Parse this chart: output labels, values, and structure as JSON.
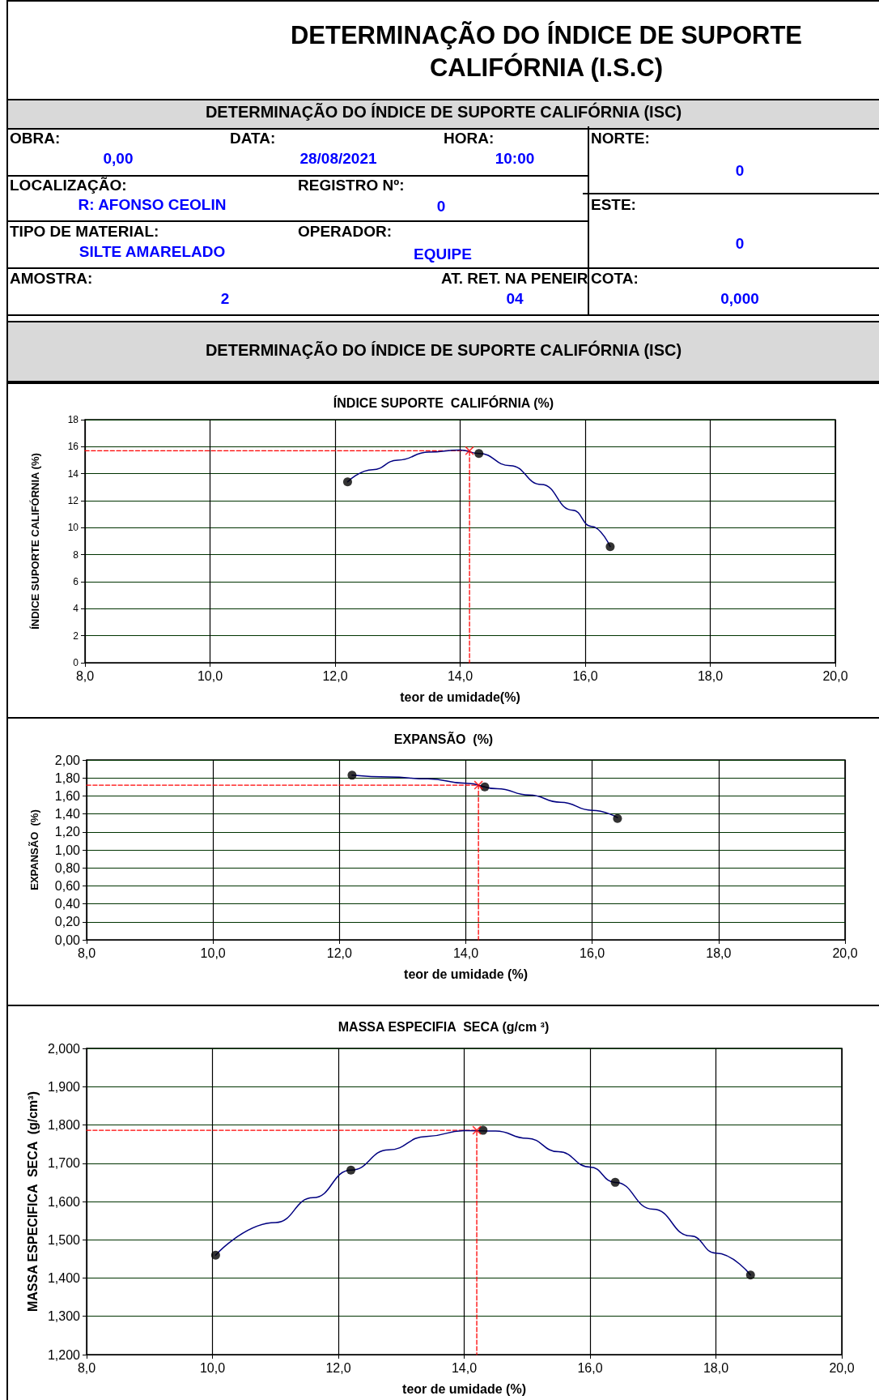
{
  "chart_data": [
    {
      "type": "other",
      "title": "DETERMINAÇÃO DO ÍNDICE DE SUPORTE CALIFÓRNIA (I.S.C)",
      "subtitle": "DETERMINAÇÃO DO ÍNDICE DE SUPORTE CALIFÓRNIA (ISC)",
      "annotations": [
        "OBRA:",
        "0,00",
        "DATA:",
        "28/08/2021",
        "HORA:",
        "10:00",
        "NORTE:",
        "0",
        "LOCALIZAÇÃO:",
        "R: AFONSO CEOLIN",
        "REGISTRO Nº:",
        "0",
        "ESTE:",
        "0",
        "TIPO DE MATERIAL:",
        "SILTE  AMARELADO",
        "OPERADOR:",
        "EQUIPE",
        "AMOSTRA:",
        "2",
        "AT. RET. NA PENEIR",
        "04",
        "COTA:",
        "0,000",
        "DETERMINAÇÃO DO ÍNDICE DE SUPORTE CALIFÓRNIA (ISC)"
      ]
    },
    {
      "type": "scatter",
      "title": "ÍNDICE SUPORTE  CALIFÓRNIA (%)",
      "xlabel": "teor de umidade(%)",
      "ylabel": "ÍNDICE SUPORTE CALIFÓRNIA (%)",
      "xlim": [
        8,
        20
      ],
      "xticks": [
        {
          "value": 8,
          "label": "8,0"
        },
        {
          "value": 10,
          "label": "10,0"
        },
        {
          "value": 12,
          "label": "12,0"
        },
        {
          "value": 14,
          "label": "14,0"
        },
        {
          "value": 16,
          "label": "16,0"
        },
        {
          "value": 18,
          "label": "18,0"
        },
        {
          "value": 20,
          "label": "20,0"
        }
      ],
      "ylim": [
        0,
        18
      ],
      "yticks": [
        0,
        2,
        4,
        6,
        8,
        10,
        12,
        14,
        16,
        18
      ],
      "grid": true,
      "series": [
        {
          "type": "line",
          "color": "#ff0000",
          "line_style": "dashed",
          "marker": "none",
          "x": [
            8,
            14.15,
            14.15
          ],
          "values": [
            15.7,
            15.7,
            0
          ]
        },
        {
          "type": "line",
          "color": "#000080",
          "marker": "none",
          "x": [
            12.2,
            12.6,
            13.0,
            13.5,
            14.0,
            14.3,
            14.8,
            15.3,
            15.8,
            16.1,
            16.4
          ],
          "values": [
            13.4,
            14.3,
            15.0,
            15.6,
            15.75,
            15.5,
            14.6,
            13.2,
            11.3,
            10.1,
            8.6
          ]
        },
        {
          "type": "scatter",
          "color": "#000000",
          "marker": "circle",
          "x": [
            12.2,
            14.3,
            16.4
          ],
          "values": [
            13.4,
            15.5,
            8.6
          ]
        },
        {
          "type": "scatter",
          "color": "#ff0000",
          "marker": "cross",
          "x": [
            14.15
          ],
          "values": [
            15.7
          ]
        }
      ]
    },
    {
      "type": "scatter",
      "title": "EXPANSÃO  (%)",
      "xlabel": "teor de umidade (%)",
      "ylabel": "EXPANSÃO  (%)",
      "xlim": [
        8,
        20
      ],
      "xticks": [
        {
          "value": 8,
          "label": "8,0"
        },
        {
          "value": 10,
          "label": "10,0"
        },
        {
          "value": 12,
          "label": "12,0"
        },
        {
          "value": 14,
          "label": "14,0"
        },
        {
          "value": 16,
          "label": "16,0"
        },
        {
          "value": 18,
          "label": "18,0"
        },
        {
          "value": 20,
          "label": "20,0"
        }
      ],
      "ylim": [
        0,
        2
      ],
      "yticks": [
        {
          "value": 0,
          "label": "0,00"
        },
        {
          "value": 0.2,
          "label": "0,20"
        },
        {
          "value": 0.4,
          "label": "0,40"
        },
        {
          "value": 0.6,
          "label": "0,60"
        },
        {
          "value": 0.8,
          "label": "0,80"
        },
        {
          "value": 1,
          "label": "1,00"
        },
        {
          "value": 1.2,
          "label": "1,20"
        },
        {
          "value": 1.4,
          "label": "1,40"
        },
        {
          "value": 1.6,
          "label": "1,60"
        },
        {
          "value": 1.8,
          "label": "1,80"
        },
        {
          "value": 2,
          "label": "2,00"
        }
      ],
      "grid": true,
      "series": [
        {
          "type": "line",
          "color": "#ff0000",
          "line_style": "dashed",
          "marker": "none",
          "x": [
            8,
            14.2,
            14.2
          ],
          "values": [
            1.72,
            1.72,
            0
          ]
        },
        {
          "type": "line",
          "color": "#000080",
          "marker": "none",
          "x": [
            12.2,
            12.8,
            13.4,
            14.0,
            14.5,
            15.0,
            15.5,
            16.0,
            16.4
          ],
          "values": [
            1.83,
            1.81,
            1.79,
            1.74,
            1.68,
            1.61,
            1.53,
            1.44,
            1.36
          ]
        },
        {
          "type": "scatter",
          "color": "#000000",
          "marker": "circle",
          "x": [
            12.2,
            14.3,
            16.4
          ],
          "values": [
            1.83,
            1.7,
            1.35
          ]
        },
        {
          "type": "scatter",
          "color": "#ff0000",
          "marker": "cross",
          "x": [
            14.2
          ],
          "values": [
            1.72
          ]
        }
      ]
    },
    {
      "type": "scatter",
      "title": "MASSA ESPECIFIA  SECA (g/cm ³)",
      "xlabel": "teor de umidade (%)",
      "ylabel": "MASSA ESPECIFICA  SECA  (g/cm³)",
      "xlim": [
        8,
        20
      ],
      "xticks": [
        {
          "value": 8,
          "label": "8,0"
        },
        {
          "value": 10,
          "label": "10,0"
        },
        {
          "value": 12,
          "label": "12,0"
        },
        {
          "value": 14,
          "label": "14,0"
        },
        {
          "value": 16,
          "label": "16,0"
        },
        {
          "value": 18,
          "label": "18,0"
        },
        {
          "value": 20,
          "label": "20,0"
        }
      ],
      "ylim": [
        1.2,
        2
      ],
      "yticks": [
        {
          "value": 1.2,
          "label": "1,200"
        },
        {
          "value": 1.3,
          "label": "1,300"
        },
        {
          "value": 1.4,
          "label": "1,400"
        },
        {
          "value": 1.5,
          "label": "1,500"
        },
        {
          "value": 1.6,
          "label": "1,600"
        },
        {
          "value": 1.7,
          "label": "1,700"
        },
        {
          "value": 1.8,
          "label": "1,800"
        },
        {
          "value": 1.9,
          "label": "1,900"
        },
        {
          "value": 2,
          "label": "2,000"
        }
      ],
      "grid": true,
      "series": [
        {
          "type": "line",
          "color": "#ff0000",
          "line_style": "dashed",
          "marker": "none",
          "x": [
            8,
            14.2,
            14.2
          ],
          "values": [
            1.786,
            1.786,
            1.2
          ]
        },
        {
          "type": "line",
          "color": "#000080",
          "marker": "none",
          "x": [
            10.05,
            11.0,
            11.6,
            12.2,
            12.8,
            13.4,
            14.0,
            14.5,
            15.0,
            15.5,
            16.0,
            16.4,
            17.0,
            17.6,
            18.0,
            18.55
          ],
          "values": [
            1.46,
            1.545,
            1.61,
            1.682,
            1.735,
            1.77,
            1.785,
            1.784,
            1.765,
            1.73,
            1.69,
            1.65,
            1.58,
            1.51,
            1.465,
            1.408
          ]
        },
        {
          "type": "scatter",
          "color": "#000000",
          "marker": "circle",
          "x": [
            10.05,
            12.2,
            14.3,
            16.4,
            18.55
          ],
          "values": [
            1.46,
            1.682,
            1.786,
            1.65,
            1.408
          ]
        },
        {
          "type": "scatter",
          "color": "#ff0000",
          "marker": "cross",
          "x": [
            14.2
          ],
          "values": [
            1.786
          ]
        }
      ]
    }
  ]
}
